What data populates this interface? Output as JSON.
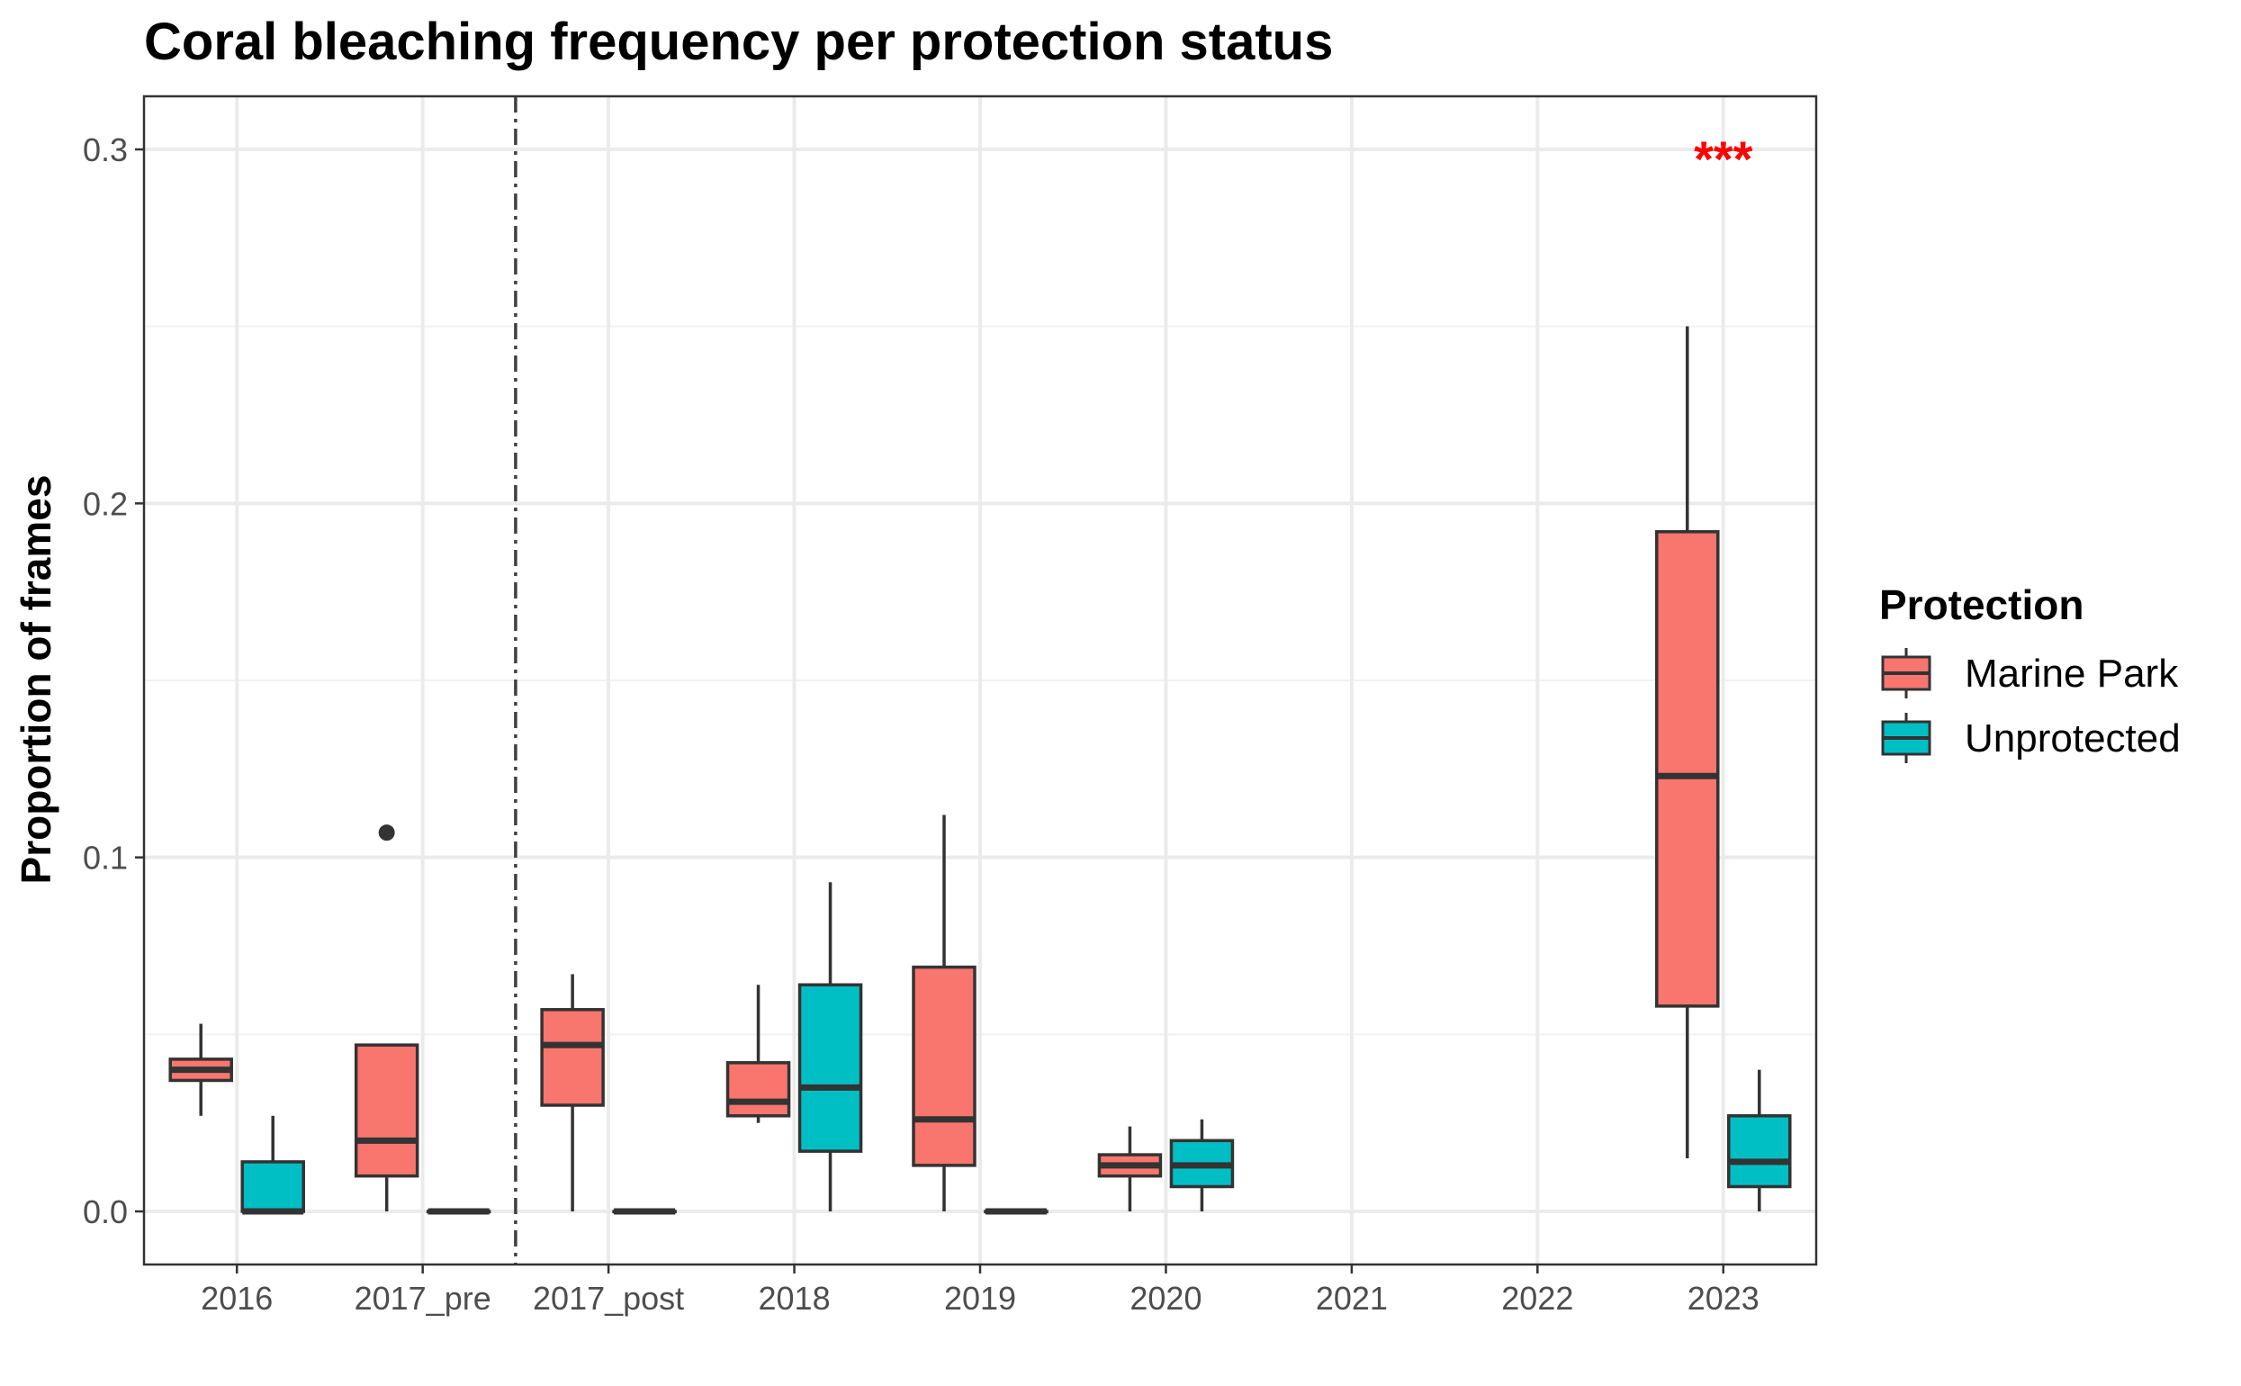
{
  "chart_data": {
    "type": "box",
    "title": "Coral bleaching frequency per protection status",
    "xlabel": "",
    "ylabel": "Proportion of frames",
    "categories": [
      "2016",
      "2017_pre",
      "2017_post",
      "2018",
      "2019",
      "2020",
      "2021",
      "2022",
      "2023"
    ],
    "ylim": [
      -0.015,
      0.315
    ],
    "yticks": [
      0.0,
      0.1,
      0.2,
      0.3
    ],
    "ytick_labels": [
      "0.0",
      "0.1",
      "0.2",
      "0.3"
    ],
    "grid": true,
    "legend": {
      "title": "Protection",
      "position": "right",
      "entries": [
        "Marine Park",
        "Unprotected"
      ]
    },
    "colors": {
      "Marine Park": "#F8766D",
      "Unprotected": "#00BFC4",
      "annotation": "#FF0000",
      "vline": "#404040"
    },
    "series": [
      {
        "name": "Marine Park",
        "boxes": [
          {
            "category": "2016",
            "min": 0.027,
            "q1": 0.037,
            "median": 0.04,
            "q3": 0.043,
            "max": 0.053,
            "outliers": []
          },
          {
            "category": "2017_pre",
            "min": 0.0,
            "q1": 0.01,
            "median": 0.02,
            "q3": 0.047,
            "max": 0.047,
            "outliers": [
              0.107
            ]
          },
          {
            "category": "2017_post",
            "min": 0.0,
            "q1": 0.03,
            "median": 0.047,
            "q3": 0.057,
            "max": 0.067,
            "outliers": []
          },
          {
            "category": "2018",
            "min": 0.025,
            "q1": 0.027,
            "median": 0.031,
            "q3": 0.042,
            "max": 0.064,
            "outliers": []
          },
          {
            "category": "2019",
            "min": 0.0,
            "q1": 0.013,
            "median": 0.026,
            "q3": 0.069,
            "max": 0.112,
            "outliers": []
          },
          {
            "category": "2020",
            "min": 0.0,
            "q1": 0.01,
            "median": 0.013,
            "q3": 0.016,
            "max": 0.024,
            "outliers": []
          },
          {
            "category": "2023",
            "min": 0.015,
            "q1": 0.058,
            "median": 0.123,
            "q3": 0.192,
            "max": 0.25,
            "outliers": []
          }
        ]
      },
      {
        "name": "Unprotected",
        "boxes": [
          {
            "category": "2016",
            "min": 0.0,
            "q1": 0.0,
            "median": 0.0,
            "q3": 0.014,
            "max": 0.027,
            "outliers": []
          },
          {
            "category": "2017_pre",
            "min": 0.0,
            "q1": 0.0,
            "median": 0.0,
            "q3": 0.0,
            "max": 0.0,
            "outliers": []
          },
          {
            "category": "2017_post",
            "min": 0.0,
            "q1": 0.0,
            "median": 0.0,
            "q3": 0.0,
            "max": 0.0,
            "outliers": []
          },
          {
            "category": "2018",
            "min": 0.0,
            "q1": 0.017,
            "median": 0.035,
            "q3": 0.064,
            "max": 0.093,
            "outliers": []
          },
          {
            "category": "2019",
            "min": 0.0,
            "q1": 0.0,
            "median": 0.0,
            "q3": 0.0,
            "max": 0.0,
            "outliers": []
          },
          {
            "category": "2020",
            "min": 0.0,
            "q1": 0.007,
            "median": 0.013,
            "q3": 0.02,
            "max": 0.026,
            "outliers": []
          },
          {
            "category": "2023",
            "min": 0.0,
            "q1": 0.007,
            "median": 0.014,
            "q3": 0.027,
            "max": 0.04,
            "outliers": []
          }
        ]
      }
    ],
    "reference_line": {
      "between": [
        "2017_pre",
        "2017_post"
      ],
      "style": "dashdot"
    },
    "annotations": [
      {
        "text": "***",
        "category": "2023",
        "y": 0.3
      }
    ]
  }
}
